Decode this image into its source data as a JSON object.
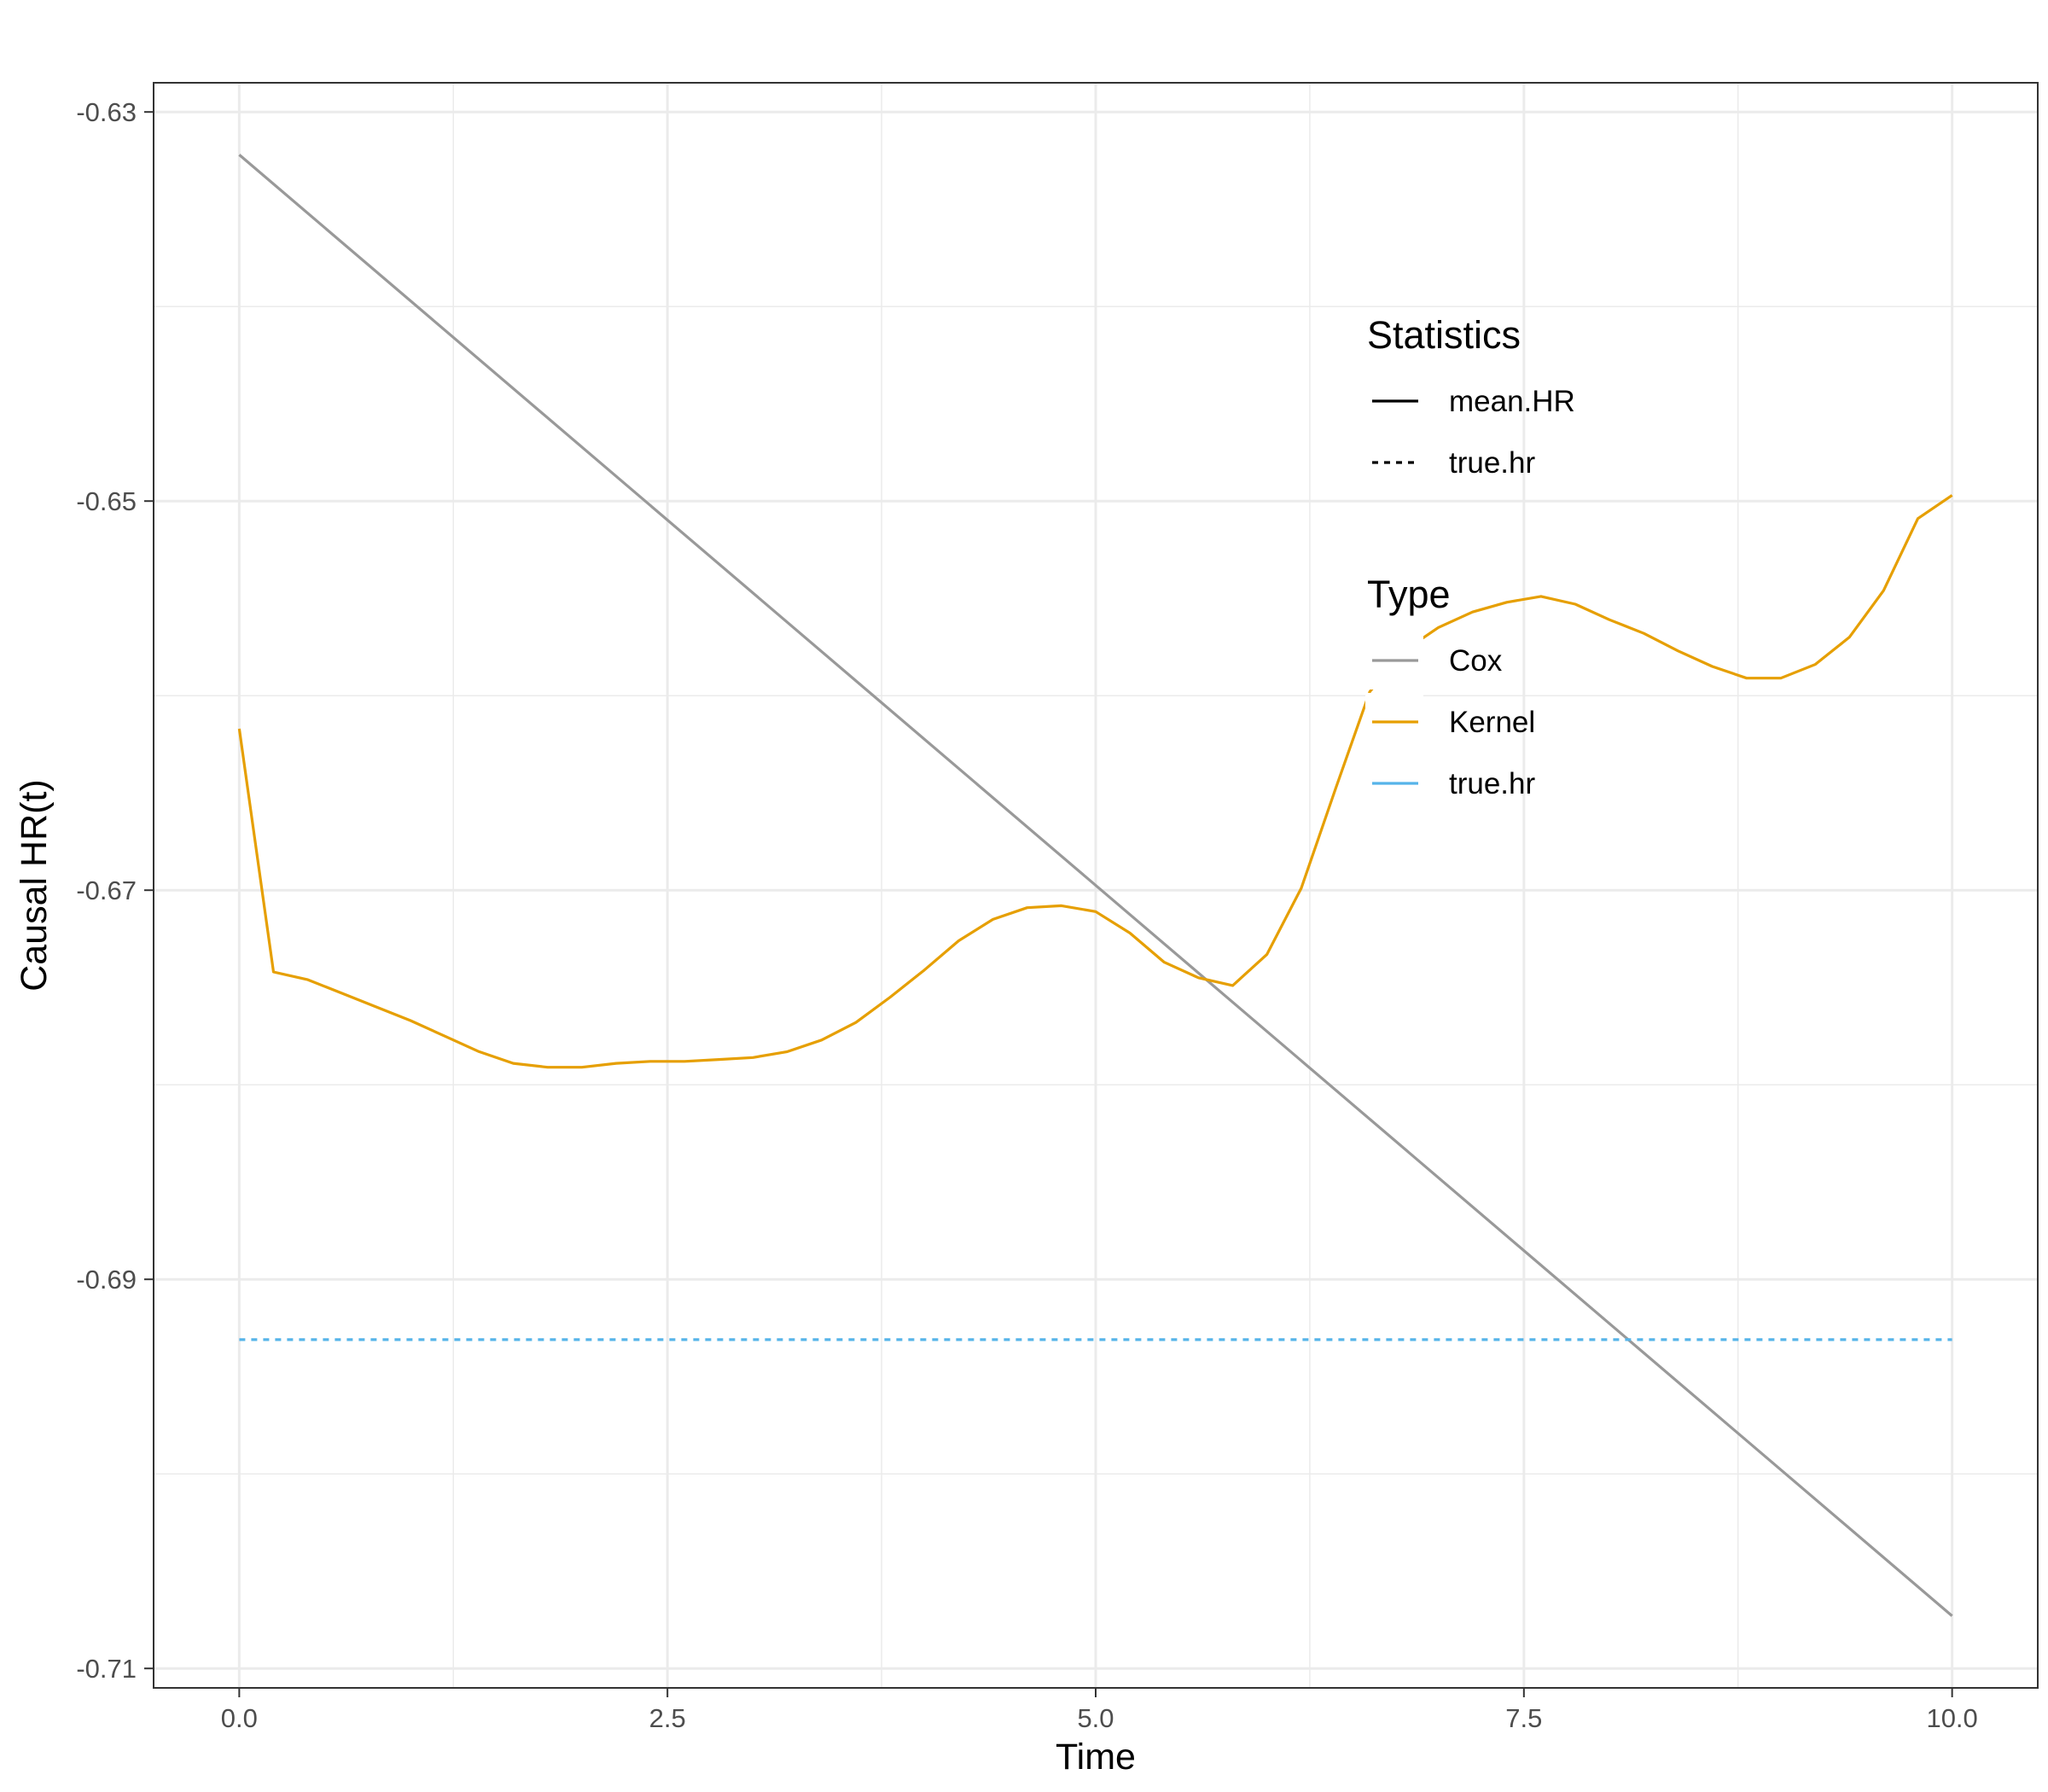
{
  "chart_data": {
    "type": "line",
    "title": "",
    "xlabel": "Time",
    "ylabel": "Causal HR(t)",
    "xlim": [
      -0.5,
      10.5
    ],
    "ylim": [
      -0.711,
      -0.6285
    ],
    "x_ticks": [
      0.0,
      2.5,
      5.0,
      7.5,
      10.0
    ],
    "x_tick_labels": [
      "0.0",
      "2.5",
      "5.0",
      "7.5",
      "10.0"
    ],
    "y_ticks": [
      -0.63,
      -0.65,
      -0.67,
      -0.69,
      -0.71
    ],
    "y_tick_labels": [
      "-0.63",
      "-0.65",
      "-0.67",
      "-0.69",
      "-0.71"
    ],
    "grid": true,
    "legend_position": "inside-top-right",
    "colors": {
      "cox": "#999999",
      "kernel": "#E69F00",
      "true_hr": "#56B4E9",
      "grid": "#ebebeb",
      "panel_border": "#333333"
    },
    "legends": [
      {
        "title": "Statistics",
        "items": [
          {
            "label": "mean.HR",
            "color": "#000000",
            "dash": "solid"
          },
          {
            "label": "true.hr",
            "color": "#000000",
            "dash": "dotted"
          }
        ]
      },
      {
        "title": "Type",
        "items": [
          {
            "label": "Cox",
            "color": "#999999",
            "dash": "solid"
          },
          {
            "label": "Kernel",
            "color": "#E69F00",
            "dash": "solid"
          },
          {
            "label": "true.hr",
            "color": "#56B4E9",
            "dash": "solid"
          }
        ]
      }
    ],
    "series": [
      {
        "key": "cox",
        "statistic": "mean.HR",
        "type": "Cox",
        "color": "#999999",
        "dash": "solid",
        "x": [
          0,
          10
        ],
        "y": [
          -0.6322,
          -0.7073
        ]
      },
      {
        "key": "kernel",
        "statistic": "mean.HR",
        "type": "Kernel",
        "color": "#E69F00",
        "dash": "solid",
        "x": [
          0,
          0.2,
          0.4,
          0.6,
          0.8,
          1.0,
          1.2,
          1.4,
          1.6,
          1.8,
          2.0,
          2.2,
          2.4,
          2.6,
          2.8,
          3.0,
          3.2,
          3.4,
          3.6,
          3.8,
          4.0,
          4.2,
          4.4,
          4.6,
          4.8,
          5.0,
          5.2,
          5.4,
          5.6,
          5.8,
          6.0,
          6.2,
          6.4,
          6.6,
          6.8,
          7.0,
          7.2,
          7.4,
          7.6,
          7.8,
          8.0,
          8.2,
          8.4,
          8.6,
          8.8,
          9.0,
          9.2,
          9.4,
          9.6,
          9.8,
          10.0
        ],
        "y": [
          -0.6617,
          -0.6742,
          -0.6746,
          -0.6753,
          -0.676,
          -0.6767,
          -0.6775,
          -0.6783,
          -0.6789,
          -0.6791,
          -0.6791,
          -0.6789,
          -0.6788,
          -0.6788,
          -0.6787,
          -0.6786,
          -0.6783,
          -0.6777,
          -0.6768,
          -0.6755,
          -0.6741,
          -0.6726,
          -0.6715,
          -0.6709,
          -0.6708,
          -0.6711,
          -0.6722,
          -0.6737,
          -0.6745,
          -0.6749,
          -0.6733,
          -0.6699,
          -0.6648,
          -0.6598,
          -0.6577,
          -0.6565,
          -0.6557,
          -0.6552,
          -0.6549,
          -0.6553,
          -0.6561,
          -0.6568,
          -0.6577,
          -0.6585,
          -0.6591,
          -0.6591,
          -0.6584,
          -0.657,
          -0.6546,
          -0.6509,
          -0.6497
        ]
      },
      {
        "key": "true_hr",
        "statistic": "true.hr",
        "type": "true.hr",
        "color": "#56B4E9",
        "dash": "dotted",
        "x": [
          0,
          10
        ],
        "y": [
          -0.6931,
          -0.6931
        ]
      }
    ]
  }
}
